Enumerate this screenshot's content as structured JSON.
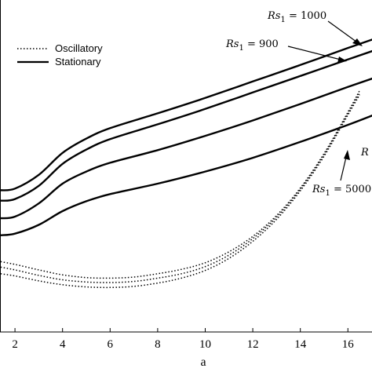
{
  "chart_data": {
    "type": "line",
    "xlabel": "a",
    "ylabel": "",
    "title": "",
    "xlim": [
      1.4,
      17.2
    ],
    "x_ticks": [
      "2",
      "4",
      "6",
      "8",
      "10",
      "12",
      "14",
      "16"
    ],
    "grid": false,
    "legend_position": "top-left",
    "legend": [
      {
        "label": "Oscillatory",
        "style": "dotted"
      },
      {
        "label": "Stationary",
        "style": "solid"
      }
    ],
    "annotations": [
      {
        "text_prefix": "Rs",
        "text_sub": "1",
        "text_suffix": " = 1000"
      },
      {
        "text_prefix": "Rs",
        "text_sub": "1",
        "text_suffix": " = 900"
      },
      {
        "text_prefix": "R",
        "text_sub": "",
        "text_suffix": ""
      },
      {
        "text_prefix": "Rs",
        "text_sub": "1",
        "text_suffix": " = 5000"
      }
    ],
    "series": [
      {
        "style": "solid",
        "x": [
          1.4,
          2,
          3,
          4,
          5,
          6,
          8,
          10,
          12,
          14,
          16,
          17.2
        ],
        "y": [
          35.8,
          36.1,
          38.6,
          42.6,
          45.2,
          47.1,
          49.8,
          52.6,
          55.6,
          58.6,
          61.7,
          63.5
        ]
      },
      {
        "style": "solid",
        "x": [
          1.4,
          2,
          3,
          4,
          5,
          6,
          8,
          10,
          12,
          14,
          16,
          17.2
        ],
        "y": [
          33.9,
          34.2,
          36.6,
          40.6,
          43.2,
          45.1,
          47.8,
          50.6,
          53.6,
          56.6,
          59.6,
          61.4
        ]
      },
      {
        "style": "solid",
        "x": [
          1.4,
          2,
          3,
          4,
          5,
          6,
          8,
          10,
          12,
          14,
          16,
          17.2
        ],
        "y": [
          30.7,
          31.0,
          33.4,
          37.0,
          39.2,
          40.8,
          43.1,
          45.7,
          48.5,
          51.5,
          54.6,
          56.4
        ]
      },
      {
        "style": "solid",
        "x": [
          1.4,
          2,
          3,
          4,
          5,
          6,
          8,
          10,
          12,
          14,
          16,
          17.2
        ],
        "y": [
          27.6,
          27.9,
          29.5,
          32.0,
          33.8,
          35.1,
          37.0,
          39.2,
          41.7,
          44.6,
          47.7,
          49.7
        ]
      },
      {
        "style": "dotted",
        "x": [
          1.4,
          2,
          3,
          4,
          5,
          6,
          7,
          8,
          9,
          10,
          11,
          12,
          13,
          14,
          15,
          16,
          16.5
        ],
        "y": [
          22.8,
          22.3,
          21.3,
          20.4,
          19.9,
          19.8,
          20.0,
          20.6,
          21.4,
          22.6,
          24.6,
          27.4,
          31.2,
          36.2,
          42.5,
          50.0,
          54.0
        ]
      },
      {
        "style": "dotted",
        "x": [
          1.4,
          2,
          3,
          4,
          5,
          6,
          7,
          8,
          9,
          10,
          11,
          12,
          13,
          14,
          15,
          16,
          16.5
        ],
        "y": [
          21.8,
          21.3,
          20.3,
          19.5,
          19.1,
          19.0,
          19.2,
          19.8,
          20.6,
          21.9,
          24.0,
          27.0,
          30.9,
          36.0,
          42.3,
          49.8,
          53.6
        ]
      },
      {
        "style": "dotted",
        "x": [
          1.4,
          2,
          3,
          4,
          5,
          6,
          7,
          8,
          9,
          10,
          11,
          12,
          13,
          14,
          15,
          16,
          16.5
        ],
        "y": [
          20.6,
          20.2,
          19.3,
          18.6,
          18.2,
          18.1,
          18.3,
          18.9,
          19.8,
          21.2,
          23.4,
          26.5,
          30.5,
          35.7,
          42.0,
          49.5,
          53.2
        ]
      }
    ]
  }
}
